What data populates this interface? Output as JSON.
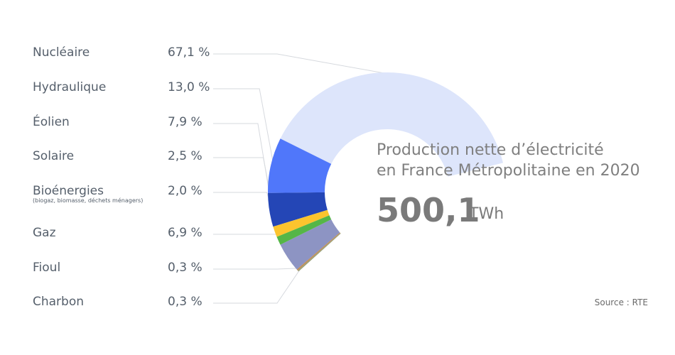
{
  "chart_data": {
    "type": "pie",
    "title_line1": "Production nette d’électricité",
    "title_line2": "en France Métropolitaine en 2020",
    "total": "500,1",
    "unit": "TWh",
    "source": "Source : RTE",
    "slices": [
      {
        "name": "Nucléaire",
        "value": 67.1,
        "label": "67,1 %",
        "color": "#dde5fb"
      },
      {
        "name": "Hydraulique",
        "value": 13.0,
        "label": "13,0 %",
        "color": "#5077fa"
      },
      {
        "name": "Éolien",
        "value": 7.9,
        "label": "7,9 %",
        "color": "#2446b6"
      },
      {
        "name": "Solaire",
        "value": 2.5,
        "label": "2,5 %",
        "color": "#fcc42e"
      },
      {
        "name": "Bioénergies",
        "sublabel": "(biogaz, biomasse, déchets ménagers)",
        "value": 2.0,
        "label": "2,0 %",
        "color": "#55b647"
      },
      {
        "name": "Gaz",
        "value": 6.9,
        "label": "6,9 %",
        "color": "#8d94c3"
      },
      {
        "name": "Fioul",
        "value": 0.3,
        "label": "0,3 %",
        "color": "#c58c4f"
      },
      {
        "name": "Charbon",
        "value": 0.3,
        "label": "0,3 %",
        "color": "#9aa078"
      }
    ]
  }
}
